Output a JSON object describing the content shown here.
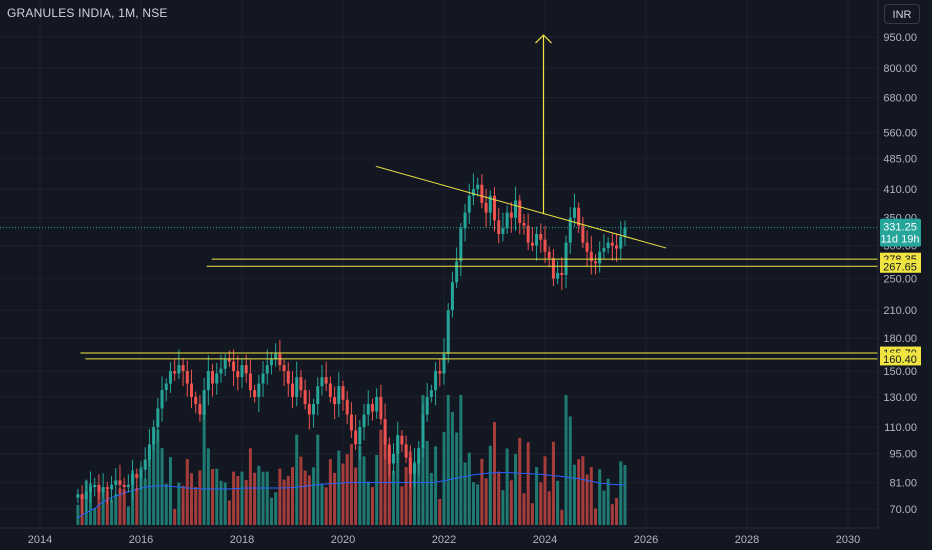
{
  "header": {
    "symbol_title": "GRANULES INDIA, 1M, NSE",
    "currency_label": "INR"
  },
  "colors": {
    "background": "#131722",
    "grid": "#1e222d",
    "up": "#26a69a",
    "down": "#ef5350",
    "volume_up": "#1f7a72",
    "volume_down": "#a53d3b",
    "ma_line": "#2962ff",
    "drawing": "#f0e442",
    "axis_text": "#b2b5be"
  },
  "chart_data": {
    "type": "candlestick",
    "title": "GRANULES INDIA, 1M, NSE",
    "y_scale": "log",
    "ylim": [
      62,
      1000
    ],
    "xlim": [
      2013.6,
      2031.0
    ],
    "y_ticks": [
      "950.00",
      "800.00",
      "680.00",
      "560.00",
      "485.00",
      "410.00",
      "350.00",
      "300.00",
      "250.00",
      "210.00",
      "180.00",
      "150.00",
      "130.00",
      "110.00",
      "95.00",
      "81.00",
      "70.00"
    ],
    "y_tick_values": [
      950,
      800,
      680,
      560,
      485,
      410,
      350,
      300,
      250,
      210,
      180,
      150,
      130,
      110,
      95,
      81,
      70
    ],
    "x_ticks": [
      "2014",
      "2016",
      "2018",
      "2020",
      "2022",
      "2024",
      "2026",
      "2028",
      "2030"
    ],
    "x_tick_values": [
      2014,
      2016,
      2018,
      2020,
      2022,
      2024,
      2026,
      2028,
      2030
    ],
    "current_price": {
      "price_label": "331.25",
      "countdown": "11d 19h",
      "value": 331.25
    },
    "horizontal_levels": [
      {
        "label": "278.35",
        "value": 278.35,
        "from": 2017.4
      },
      {
        "label": "267.65",
        "value": 267.65,
        "from": 2017.3
      },
      {
        "label": "165.70",
        "value": 165.7,
        "from": 2014.8
      },
      {
        "label": "160.40",
        "value": 160.4,
        "from": 2014.9
      }
    ],
    "trendline": {
      "start": [
        2020.65,
        465
      ],
      "end": [
        2026.4,
        296
      ]
    },
    "arrow": {
      "x": 2023.97,
      "from": 357,
      "to": 960
    },
    "monthly_closes": [
      76,
      74,
      77,
      79,
      80,
      77,
      79,
      78,
      80,
      82,
      80,
      79,
      80,
      85,
      83,
      87,
      92,
      100,
      110,
      122,
      135,
      140,
      150,
      148,
      155,
      150,
      140,
      130,
      125,
      118,
      135,
      150,
      140,
      148,
      152,
      160,
      158,
      150,
      145,
      155,
      148,
      135,
      130,
      140,
      148,
      155,
      160,
      165,
      155,
      150,
      140,
      130,
      145,
      135,
      125,
      118,
      125,
      138,
      145,
      140,
      130,
      125,
      138,
      128,
      118,
      108,
      100,
      110,
      118,
      125,
      120,
      130,
      115,
      100,
      90,
      95,
      105,
      100,
      93,
      85,
      90,
      98,
      118,
      130,
      135,
      150,
      148,
      165,
      210,
      245,
      275,
      330,
      360,
      395,
      410,
      420,
      380,
      360,
      395,
      345,
      320,
      330,
      360,
      350,
      385,
      340,
      335,
      305,
      300,
      320,
      310,
      290,
      280,
      250,
      258,
      255,
      305,
      350,
      370,
      335,
      305,
      290,
      275,
      272,
      290,
      296,
      305,
      300,
      295,
      315,
      331.25
    ],
    "volume_ma": [
      66.5,
      67.8,
      68.5,
      69.5,
      70.2,
      71.5,
      72.8,
      73.8,
      74.5,
      75.2,
      75.8,
      76.5,
      77,
      77.5,
      78,
      78.5,
      79,
      79.2,
      79.4,
      79.6,
      79.6,
      79.5,
      79.4,
      79.2,
      79,
      78.8,
      78.6,
      78.5,
      78.4,
      78.3,
      78.2,
      78.2,
      78.2,
      78.2,
      78.2,
      78.2,
      78.2,
      78.3,
      78.4,
      78.5,
      78.6,
      78.6,
      78.6,
      78.6,
      78.6,
      78.6,
      78.6,
      78.6,
      78.6,
      78.6,
      78.7,
      78.8,
      79,
      79.2,
      79.4,
      79.6,
      79.8,
      80,
      80.2,
      80.4,
      80.5,
      80.6,
      80.7,
      80.8,
      80.9,
      81,
      81,
      81,
      81,
      81,
      81,
      81,
      81,
      81,
      81,
      81,
      81,
      81,
      81,
      81,
      81,
      81,
      81,
      81,
      81,
      81.2,
      81.5,
      81.8,
      82.2,
      82.6,
      83,
      83.4,
      83.8,
      84.2,
      84.5,
      84.8,
      85,
      85.2,
      85.4,
      85.5,
      85.6,
      85.6,
      85.6,
      85.5,
      85.4,
      85.3,
      85.2,
      85.1,
      85,
      84.9,
      84.8,
      84.6,
      84.4,
      84.2,
      84,
      83.8,
      83.5,
      83.2,
      83,
      82.8,
      82.4,
      82,
      81.6,
      81.2,
      80.8,
      80.6,
      80.4,
      80.2,
      80.1,
      80,
      80.1
    ]
  }
}
